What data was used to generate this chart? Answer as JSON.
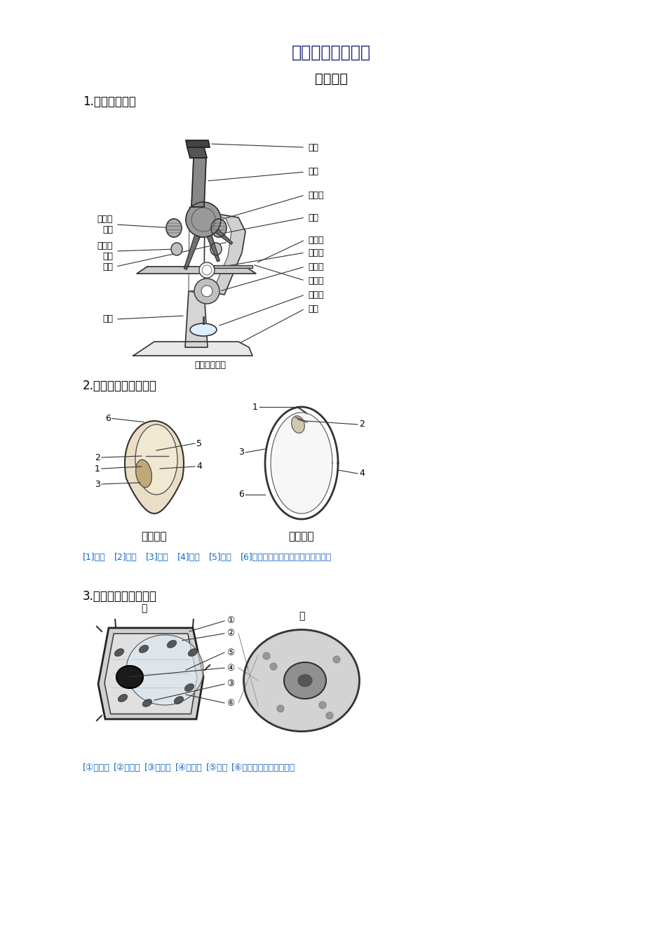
{
  "title": "初中生物部分复习",
  "subtitle": "》识图《",
  "subtitle2": "【识图】",
  "bg_color": "#ffffff",
  "text_color": "#000000",
  "blue_color": "#1565c0",
  "section1": "1.显微镜结构。",
  "section2": "2.玉米种子与蚕豆种子",
  "section3": "3.植物细胞与动物细胞",
  "microscope_caption": "显微镜的结构",
  "label_eyepiece": "目镜",
  "label_tube": "镜筒",
  "label_revolver": "转换器",
  "label_objective": "物镜",
  "label_stage": "载物台",
  "label_aperture": "通光孔",
  "label_diaphragm": "遗光器",
  "label_clip": "压片夹",
  "label_mirror": "反光镜",
  "label_base": "镜座",
  "label_column": "镜柱",
  "label_arm": "镜臂",
  "label_fine": "细准焦\n螺旋",
  "label_coarse": "粗准焦\n螺旋",
  "seed_corn_label": "玉米种子",
  "seed_bean_label": "蚕豆种子",
  "seed_legend_1": "[1]胚轴",
  "seed_legend_2": "[2]胚芽",
  "seed_legend_3": "[3]胚根",
  "seed_legend_4": "[4]子叶",
  "seed_legend_5": "[5]胚乳",
  "seed_legend_6": "[6]果皮和种皮（玉米）种皮（蚕豆）",
  "cell_label_jia": "甲",
  "cell_label_yi": "乙",
  "cell_leg1": "[①细胞壁",
  "cell_leg2": "[②细胞膜",
  "cell_leg3": "[③叶綠体",
  "cell_leg4": "[④细胞核",
  "cell_leg5": "[⑤液泡",
  "cell_leg6": "[⑥细胞质（注：线粒体）"
}
